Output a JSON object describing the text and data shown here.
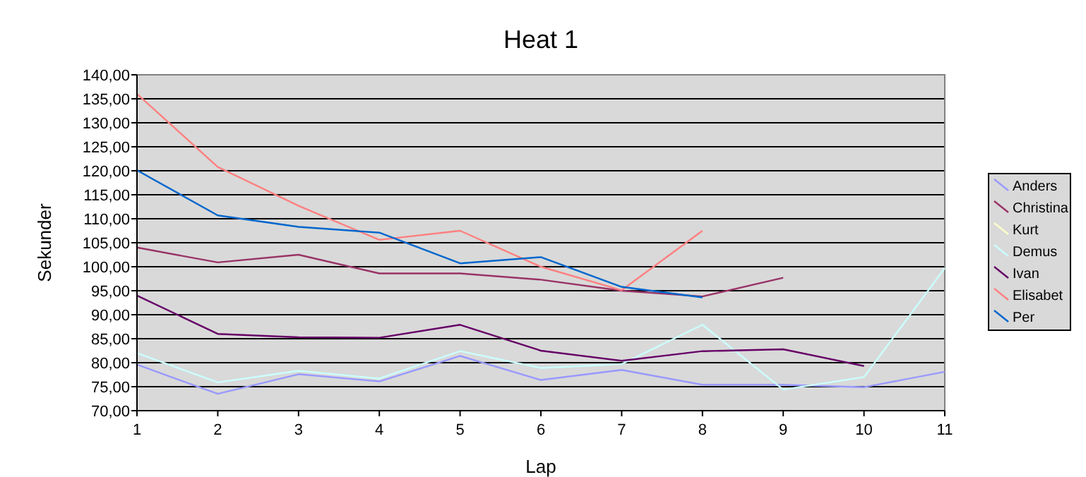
{
  "chart_data": {
    "type": "line",
    "title": "Heat 1",
    "xlabel": "Lap",
    "ylabel": "Sekunder",
    "x": [
      1,
      2,
      3,
      4,
      5,
      6,
      7,
      8,
      9,
      10,
      11
    ],
    "xlim": [
      1,
      11
    ],
    "xticks": [
      1,
      2,
      3,
      4,
      5,
      6,
      7,
      8,
      9,
      10,
      11
    ],
    "ylim": [
      70,
      140
    ],
    "yticks": [
      {
        "value": 70,
        "label": "70,00"
      },
      {
        "value": 75,
        "label": "75,00"
      },
      {
        "value": 80,
        "label": "80,00"
      },
      {
        "value": 85,
        "label": "85,00"
      },
      {
        "value": 90,
        "label": "90,00"
      },
      {
        "value": 95,
        "label": "95,00"
      },
      {
        "value": 100,
        "label": "100,00"
      },
      {
        "value": 105,
        "label": "105,00"
      },
      {
        "value": 110,
        "label": "110,00"
      },
      {
        "value": 115,
        "label": "115,00"
      },
      {
        "value": 120,
        "label": "120,00"
      },
      {
        "value": 125,
        "label": "125,00"
      },
      {
        "value": 130,
        "label": "130,00"
      },
      {
        "value": 135,
        "label": "135,00"
      },
      {
        "value": 140,
        "label": "140,00"
      }
    ],
    "grid": "y",
    "legend": "right",
    "marker": "none",
    "line_style": "solid",
    "series": [
      {
        "name": "Anders",
        "color": "#9999ff",
        "values": [
          79.6,
          73.5,
          77.6,
          76.1,
          81.4,
          76.4,
          78.5,
          75.4,
          75.4,
          74.9,
          78.1
        ]
      },
      {
        "name": "Christina",
        "color": "#993366",
        "values": [
          104,
          100.9,
          102.5,
          98.6,
          98.6,
          97.3,
          95,
          93.8,
          97.7,
          null,
          null
        ]
      },
      {
        "name": "Kurt",
        "color": "#ffffcc",
        "values": [
          null,
          null,
          null,
          null,
          null,
          null,
          null,
          null,
          null,
          null,
          null
        ]
      },
      {
        "name": "Demus",
        "color": "#ccffff",
        "values": [
          82,
          75.9,
          78.3,
          76.7,
          82.4,
          78.9,
          79.7,
          87.9,
          74.4,
          77,
          99.7
        ]
      },
      {
        "name": "Ivan",
        "color": "#660066",
        "values": [
          94,
          86,
          85.3,
          85.2,
          87.9,
          82.5,
          80.4,
          82.4,
          82.8,
          79.3,
          null
        ]
      },
      {
        "name": "Elisabet",
        "color": "#ff8080",
        "values": [
          136,
          120.8,
          112.7,
          105.6,
          107.5,
          100,
          95.1,
          107.5,
          null,
          null,
          null
        ]
      },
      {
        "name": "Per",
        "color": "#0066cc",
        "values": [
          120.1,
          110.7,
          108.3,
          107.1,
          100.7,
          102,
          95.8,
          93.6,
          null,
          null,
          null
        ]
      }
    ]
  }
}
